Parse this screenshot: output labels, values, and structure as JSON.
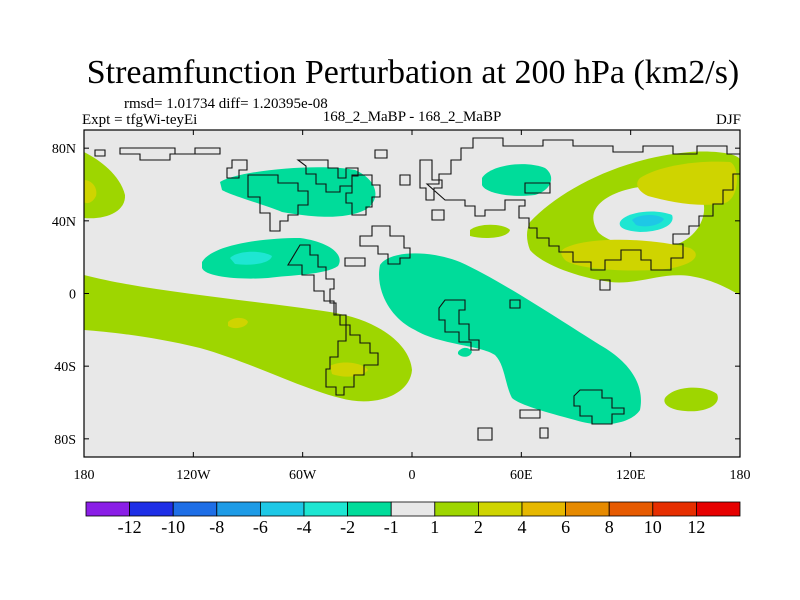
{
  "chart_data": {
    "type": "heatmap",
    "title": "Streamfunction Perturbation at 200 hPa (km2/s)",
    "subtitle_left_top": "rmsd= 1.01734  diff= 1.20395e-08",
    "subtitle_left": "Expt = tfgWi-teyEi",
    "subtitle_center": "168_2_MaBP - 168_2_MaBP",
    "subtitle_right": "DJF",
    "x_ticks": [
      {
        "value": -180,
        "label": "180"
      },
      {
        "value": -120,
        "label": "120W"
      },
      {
        "value": -60,
        "label": "60W"
      },
      {
        "value": 0,
        "label": "0"
      },
      {
        "value": 60,
        "label": "60E"
      },
      {
        "value": 120,
        "label": "120E"
      },
      {
        "value": 180,
        "label": "180"
      }
    ],
    "y_ticks": [
      {
        "value": 80,
        "label": "80N"
      },
      {
        "value": 40,
        "label": "40N"
      },
      {
        "value": 0,
        "label": "0"
      },
      {
        "value": -40,
        "label": "40S"
      },
      {
        "value": -80,
        "label": "80S"
      }
    ],
    "xlim": [
      -180,
      180
    ],
    "ylim": [
      -90,
      90
    ],
    "colorbar": {
      "colors": [
        "#8a1ee6",
        "#1e2ee6",
        "#1e6ee6",
        "#1e9be6",
        "#1ec8e6",
        "#1ee6d2",
        "#00dc9a",
        "#e8e8e8",
        "#9ed600",
        "#cfd400",
        "#e6b800",
        "#e68a00",
        "#e65a00",
        "#e62e00",
        "#e60000"
      ],
      "labels": [
        "-12",
        "-10",
        "-8",
        "-6",
        "-4",
        "-2",
        "-1",
        "1",
        "2",
        "4",
        "6",
        "8",
        "10",
        "12"
      ]
    },
    "background_value": "#e8e8e8"
  }
}
